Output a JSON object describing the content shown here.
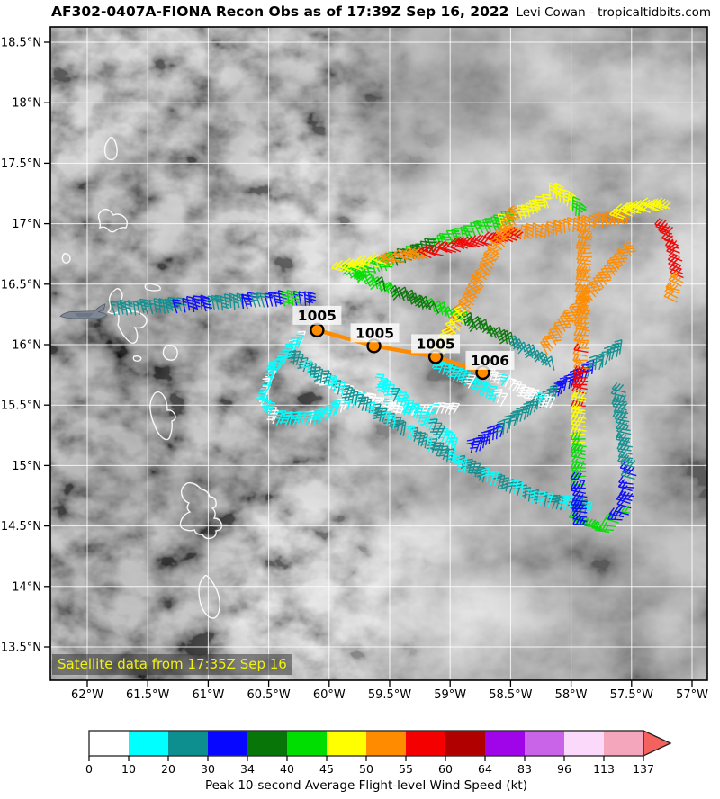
{
  "title": {
    "main": "AF302-0407A-FIONA Recon Obs as of 17:39Z Sep 16, 2022",
    "credit": "Levi Cowan - tropicaltidbits.com"
  },
  "map": {
    "satellite_note": "Satellite data from 17:35Z Sep 16",
    "bounds": {
      "lon_min": -62.31,
      "lon_max": -56.87,
      "lat_min": 13.22,
      "lat_max": 18.63
    },
    "x_axis": {
      "ticks": [
        {
          "label": "62°W",
          "lon": -62.0
        },
        {
          "label": "61.5°W",
          "lon": -61.5
        },
        {
          "label": "61°W",
          "lon": -61.0
        },
        {
          "label": "60.5°W",
          "lon": -60.5
        },
        {
          "label": "60°W",
          "lon": -60.0
        },
        {
          "label": "59.5°W",
          "lon": -59.5
        },
        {
          "label": "59°W",
          "lon": -59.0
        },
        {
          "label": "58.5°W",
          "lon": -58.5
        },
        {
          "label": "58°W",
          "lon": -58.0
        },
        {
          "label": "57.5°W",
          "lon": -57.5
        },
        {
          "label": "57°W",
          "lon": -57.0
        }
      ]
    },
    "y_axis": {
      "ticks": [
        {
          "label": "18.5°N",
          "lat": 18.5
        },
        {
          "label": "18°N",
          "lat": 18.0
        },
        {
          "label": "17.5°N",
          "lat": 17.5
        },
        {
          "label": "17°N",
          "lat": 17.0
        },
        {
          "label": "16.5°N",
          "lat": 16.5
        },
        {
          "label": "16°N",
          "lat": 16.0
        },
        {
          "label": "15.5°N",
          "lat": 15.5
        },
        {
          "label": "15°N",
          "lat": 15.0
        },
        {
          "label": "14.5°N",
          "lat": 14.5
        },
        {
          "label": "14°N",
          "lat": 14.0
        },
        {
          "label": "13.5°N",
          "lat": 13.5
        }
      ]
    }
  },
  "aircraft": {
    "lon": -62.03,
    "lat": 16.25
  },
  "fixes": [
    {
      "pressure": "1005",
      "lon": -60.1,
      "lat": 16.12
    },
    {
      "pressure": "1005",
      "lon": -59.63,
      "lat": 15.99
    },
    {
      "pressure": "1005",
      "lon": -59.12,
      "lat": 15.9
    },
    {
      "pressure": "1006",
      "lon": -58.73,
      "lat": 15.77
    }
  ],
  "colors": {
    "track": "#ff8c00",
    "fix_fill": "#ff8c00",
    "fix_edge": "#000000",
    "note_text": "#f2f20c",
    "note_bg": "rgba(55,55,55,0.55)",
    "grid": "rgba(255,255,255,0.85)",
    "coastline": "#ffffff"
  },
  "palette": {
    "white": "#ffffff",
    "cyan": "#00ffff",
    "teal": "#0e8f8f",
    "blue": "#0707ff",
    "darkgreen": "#077507",
    "green": "#00dd00",
    "yellow": "#ffff00",
    "orange": "#ff8c00",
    "red": "#f40000",
    "darkred": "#b00000",
    "purple": "#9f05e8",
    "orchid": "#c964e8",
    "lavender": "#fad9fa",
    "pink": "#f3a6bc",
    "arrow": "#f4615e"
  },
  "wind_barb_legs": [
    {
      "pts": [
        [
          -61.77,
          16.24
        ],
        [
          -61.23,
          16.27
        ],
        [
          -60.71,
          16.3
        ]
      ],
      "colors": [
        "teal",
        "teal",
        "blue",
        "teal"
      ],
      "angle": -12,
      "side": 1
    },
    {
      "pts": [
        [
          -60.71,
          16.3
        ],
        [
          -60.42,
          16.32
        ],
        [
          -60.15,
          16.33
        ]
      ],
      "colors": [
        "blue",
        "teal",
        "blue",
        "green",
        "blue"
      ],
      "angle": -12,
      "side": 1
    },
    {
      "pts": [
        [
          -60.24,
          16.0
        ],
        [
          -60.47,
          15.74
        ],
        [
          -60.56,
          15.49
        ],
        [
          -60.45,
          15.33
        ],
        [
          -60.12,
          15.34
        ],
        [
          -59.78,
          15.5
        ]
      ],
      "colors": [
        "cyan"
      ],
      "mix": "white",
      "mixp": 0.35,
      "angle": 22,
      "side": -1
    },
    {
      "pts": [
        [
          -60.12,
          15.69
        ],
        [
          -59.75,
          15.52
        ],
        [
          -59.34,
          15.41
        ],
        [
          -58.96,
          15.43
        ]
      ],
      "colors": [
        "white"
      ],
      "mix": "cyan",
      "mixp": 0.25,
      "angle": 28,
      "side": -1,
      "len": 13
    },
    {
      "pts": [
        [
          -60.3,
          15.84
        ],
        [
          -59.82,
          15.52
        ],
        [
          -59.3,
          15.19
        ],
        [
          -58.78,
          14.89
        ],
        [
          -58.26,
          14.67
        ],
        [
          -57.85,
          14.59
        ]
      ],
      "colors": [
        "teal"
      ],
      "mix": "cyan",
      "mixp": 0.3,
      "angle": 15,
      "side": -1
    },
    {
      "pts": [
        [
          -59.6,
          15.64
        ],
        [
          -59.26,
          15.37
        ],
        [
          -58.96,
          15.11
        ]
      ],
      "colors": [
        "cyan"
      ],
      "mix": "teal",
      "mixp": 0.2,
      "angle": 20,
      "side": -1
    },
    {
      "pts": [
        [
          -59.82,
          16.56
        ],
        [
          -59.52,
          16.43
        ],
        [
          -59.22,
          16.3
        ],
        [
          -58.93,
          16.19
        ],
        [
          -58.64,
          16.07
        ],
        [
          -58.37,
          15.93
        ],
        [
          -58.12,
          15.78
        ]
      ],
      "colors": [
        "green",
        "darkgreen",
        "green",
        "darkgreen",
        "teal"
      ],
      "angle": -18,
      "side": -1
    },
    {
      "pts": [
        [
          -58.82,
          15.09
        ],
        [
          -58.52,
          15.29
        ],
        [
          -58.18,
          15.52
        ],
        [
          -57.89,
          15.72
        ],
        [
          -57.6,
          15.92
        ]
      ],
      "colors": [
        "blue",
        "teal",
        "teal",
        "blue",
        "teal"
      ],
      "angle": 12,
      "side": -1
    },
    {
      "pts": [
        [
          -57.9,
          14.55
        ],
        [
          -57.68,
          14.45
        ],
        [
          -57.51,
          14.61
        ],
        [
          -57.47,
          14.89
        ],
        [
          -57.51,
          15.26
        ],
        [
          -57.56,
          15.61
        ]
      ],
      "colors": [
        "green",
        "blue",
        "teal",
        "teal"
      ],
      "angle": -80,
      "side": 1
    },
    {
      "pts": [
        [
          -59.75,
          16.53
        ],
        [
          -59.3,
          16.71
        ],
        [
          -58.85,
          16.87
        ],
        [
          -58.44,
          17.02
        ],
        [
          -58.17,
          17.14
        ]
      ],
      "colors": [
        "green",
        "darkgreen",
        "green",
        "green",
        "yellow"
      ],
      "angle": -20,
      "side": 1
    },
    {
      "pts": [
        [
          -58.18,
          17.23
        ],
        [
          -58.02,
          17.14
        ],
        [
          -57.91,
          16.99
        ]
      ],
      "colors": [
        "yellow",
        "yellow",
        "green"
      ],
      "angle": 2,
      "side": 1
    },
    {
      "pts": [
        [
          -58.59,
          16.84
        ],
        [
          -58.18,
          16.9
        ],
        [
          -57.81,
          16.96
        ],
        [
          -57.53,
          17.0
        ]
      ],
      "colors": [
        "orange"
      ],
      "angle": 0,
      "side": 1
    },
    {
      "pts": [
        [
          -57.57,
          17.05
        ],
        [
          -57.35,
          17.1
        ],
        [
          -57.16,
          17.12
        ]
      ],
      "colors": [
        "yellow"
      ],
      "angle": -65,
      "side": 1,
      "sp": 3.5
    },
    {
      "pts": [
        [
          -57.2,
          16.97
        ],
        [
          -57.1,
          16.77
        ],
        [
          -57.07,
          16.54
        ],
        [
          -57.13,
          16.34
        ]
      ],
      "colors": [
        "red",
        "red",
        "orange"
      ],
      "angle": -70,
      "side": 1
    },
    {
      "pts": [
        [
          -59.86,
          16.6
        ],
        [
          -59.44,
          16.68
        ],
        [
          -59.08,
          16.74
        ],
        [
          -58.67,
          16.83
        ],
        [
          -58.41,
          16.87
        ]
      ],
      "colors": [
        "yellow",
        "orange",
        "red",
        "red"
      ],
      "angle": -70,
      "side": 1
    },
    {
      "pts": [
        [
          -58.42,
          17.05
        ],
        [
          -58.62,
          16.69
        ],
        [
          -58.79,
          16.36
        ],
        [
          -58.96,
          16.06
        ],
        [
          -59.09,
          15.87
        ]
      ],
      "colors": [
        "orange",
        "orange",
        "orange",
        "yellow"
      ],
      "angle": -50,
      "side": 1
    },
    {
      "pts": [
        [
          -57.51,
          16.73
        ],
        [
          -57.75,
          16.45
        ],
        [
          -57.99,
          16.17
        ],
        [
          -58.2,
          15.91
        ]
      ],
      "colors": [
        "orange"
      ],
      "angle": -35,
      "side": 1
    },
    {
      "pts": [
        [
          -57.83,
          16.93
        ],
        [
          -57.84,
          16.39
        ],
        [
          -57.86,
          15.87
        ],
        [
          -57.88,
          15.35
        ],
        [
          -57.88,
          14.91
        ],
        [
          -57.87,
          14.5
        ]
      ],
      "colors": [
        "orange",
        "orange",
        "orange",
        "red",
        "yellow",
        "green",
        "blue"
      ],
      "angle": -85,
      "side": 1
    },
    {
      "pts": [
        [
          -59.15,
          15.81
        ],
        [
          -58.85,
          15.64
        ],
        [
          -58.58,
          15.49
        ]
      ],
      "colors": [
        "cyan"
      ],
      "mix": "white",
      "mixp": 0.2,
      "angle": 25,
      "side": -1
    },
    {
      "pts": [
        [
          -58.7,
          15.72
        ],
        [
          -58.41,
          15.58
        ],
        [
          -58.15,
          15.46
        ]
      ],
      "colors": [
        "white"
      ],
      "mix": "cyan",
      "mixp": 0.2,
      "angle": 30,
      "side": -1,
      "len": 13
    }
  ],
  "colorbar": {
    "title": "Peak 10-second Average Flight-level Wind Speed (kt)",
    "tick_labels": [
      "0",
      "10",
      "20",
      "30",
      "34",
      "40",
      "45",
      "50",
      "55",
      "60",
      "64",
      "83",
      "96",
      "113",
      "137"
    ],
    "segment_colors": [
      "white",
      "cyan",
      "teal",
      "blue",
      "darkgreen",
      "green",
      "yellow",
      "orange",
      "red",
      "darkred",
      "purple",
      "orchid",
      "lavender",
      "pink"
    ],
    "arrow_color_key": "arrow"
  }
}
